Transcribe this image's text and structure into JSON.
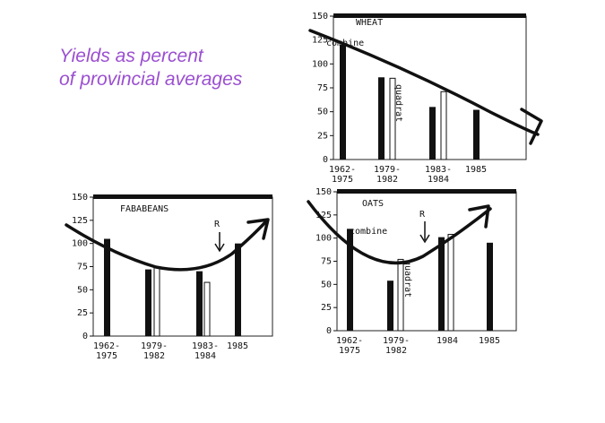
{
  "headline": {
    "line1": "Yields as percent",
    "line2": "of provincial averages"
  },
  "chart_data": [
    {
      "type": "bar",
      "title": "WHEAT",
      "ylim": [
        0,
        150
      ],
      "yticks": [
        "0",
        "25",
        "50",
        "75",
        "100",
        "125",
        "150"
      ],
      "categories": [
        [
          "1962-",
          "1975"
        ],
        [
          "1979-",
          "1982"
        ],
        [
          "1983-",
          "1984"
        ],
        [
          "1985"
        ]
      ],
      "series": [
        {
          "name": "combine",
          "values": [
            120,
            86,
            55,
            52
          ]
        },
        {
          "name": "quadrat",
          "values": [
            null,
            85,
            71,
            null
          ]
        }
      ],
      "annotations": [
        "combine",
        "quadrat"
      ],
      "trend": "downward arrow"
    },
    {
      "type": "bar",
      "title": "FABABEANS",
      "ylim": [
        0,
        150
      ],
      "yticks": [
        "0",
        "25",
        "50",
        "75",
        "100",
        "125",
        "150"
      ],
      "categories": [
        [
          "1962-",
          "1975"
        ],
        [
          "1979-",
          "1982"
        ],
        [
          "1983-",
          "1984"
        ],
        [
          "1985"
        ]
      ],
      "series": [
        {
          "values": [
            105,
            72,
            70,
            100
          ]
        },
        {
          "values": [
            null,
            75,
            58,
            null
          ]
        }
      ],
      "annotations": [
        "R"
      ],
      "trend": "U-shaped arrow"
    },
    {
      "type": "bar",
      "title": "OATS",
      "ylim": [
        0,
        150
      ],
      "yticks": [
        "0",
        "25",
        "50",
        "75",
        "100",
        "125",
        "150"
      ],
      "categories": [
        [
          "1962-",
          "1975"
        ],
        [
          "1979-",
          "1982"
        ],
        [
          "1984"
        ],
        [
          "1985"
        ]
      ],
      "series": [
        {
          "name": "combine",
          "values": [
            110,
            54,
            101,
            95
          ]
        },
        {
          "name": "quadrat",
          "values": [
            null,
            77,
            104,
            null
          ]
        }
      ],
      "annotations": [
        "combine",
        "quadrat",
        "R"
      ],
      "trend": "U-shaped arrow"
    }
  ]
}
